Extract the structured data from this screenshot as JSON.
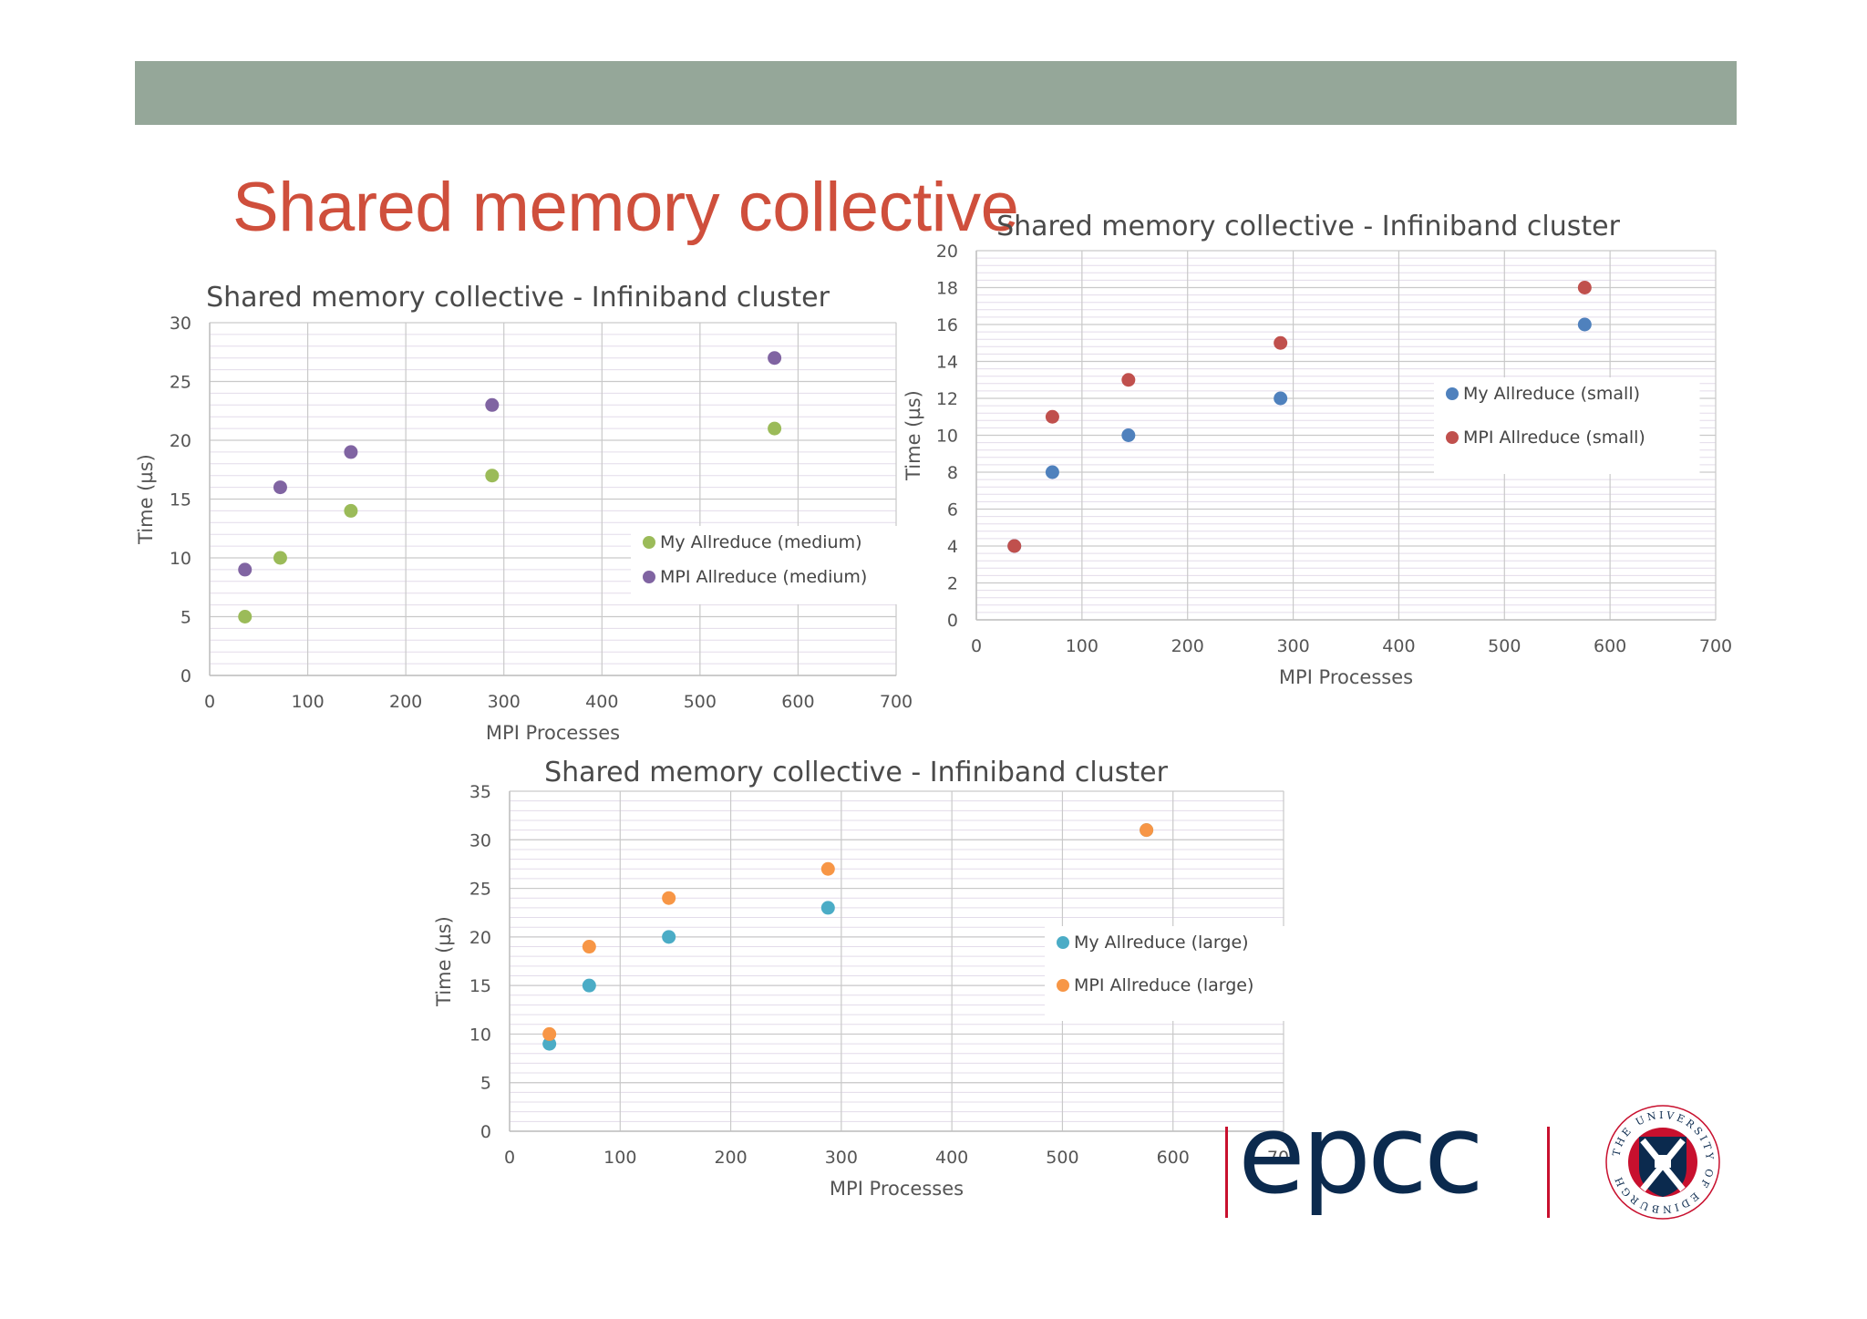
{
  "slide": {
    "title": "Shared memory collective",
    "banner_color": "#95a799",
    "title_color": "#cf4f3c"
  },
  "chart_data": [
    {
      "type": "scatter",
      "title": "Shared memory collective - Infiniband cluster",
      "xlabel": "MPI Processes",
      "ylabel": "Time (µs)",
      "xlim": [
        0,
        700
      ],
      "ylim": [
        0,
        30
      ],
      "xticks": [
        0,
        100,
        200,
        300,
        400,
        500,
        600,
        700
      ],
      "yticks": [
        0,
        5,
        10,
        15,
        20,
        25,
        30
      ],
      "grid": true,
      "legend_position": "right",
      "series": [
        {
          "name": "My Allreduce (medium)",
          "color": "#9bbb59",
          "x": [
            36,
            72,
            144,
            288,
            576
          ],
          "y": [
            5,
            10,
            14,
            17,
            21
          ]
        },
        {
          "name": "MPI Allreduce (medium)",
          "color": "#8064a2",
          "x": [
            36,
            72,
            144,
            288,
            576
          ],
          "y": [
            9,
            16,
            19,
            23,
            27
          ]
        }
      ]
    },
    {
      "type": "scatter",
      "title": "Shared memory collective - Infiniband cluster",
      "xlabel": "MPI Processes",
      "ylabel": "Time (µs)",
      "xlim": [
        0,
        700
      ],
      "ylim": [
        0,
        20
      ],
      "xticks": [
        0,
        100,
        200,
        300,
        400,
        500,
        600,
        700
      ],
      "yticks": [
        0,
        2,
        4,
        6,
        8,
        10,
        12,
        14,
        16,
        18,
        20
      ],
      "grid": true,
      "legend_position": "right",
      "series": [
        {
          "name": "My Allreduce (small)",
          "color": "#4f81bd",
          "x": [
            36,
            72,
            144,
            288,
            576
          ],
          "y": [
            4,
            8,
            10,
            12,
            16
          ]
        },
        {
          "name": "MPI Allreduce (small)",
          "color": "#c0504d",
          "x": [
            36,
            72,
            144,
            288,
            576
          ],
          "y": [
            4,
            11,
            13,
            15,
            18
          ]
        }
      ]
    },
    {
      "type": "scatter",
      "title": "Shared memory collective - Infiniband cluster",
      "xlabel": "MPI Processes",
      "ylabel": "Time (µs)",
      "xlim": [
        0,
        700
      ],
      "ylim": [
        0,
        35
      ],
      "xticks": [
        0,
        100,
        200,
        300,
        400,
        500,
        600,
        700
      ],
      "yticks": [
        0,
        5,
        10,
        15,
        20,
        25,
        30,
        35
      ],
      "grid": true,
      "legend_position": "right",
      "series": [
        {
          "name": "My Allreduce (large)",
          "color": "#4bacc6",
          "x": [
            36,
            72,
            144,
            288,
            576
          ],
          "y": [
            9,
            15,
            20,
            23,
            31
          ]
        },
        {
          "name": "MPI Allreduce (large)",
          "color": "#f79646",
          "x": [
            36,
            72,
            144,
            288,
            576
          ],
          "y": [
            10,
            19,
            24,
            27,
            31
          ]
        }
      ]
    }
  ],
  "logos": {
    "epcc": {
      "text": "epcc",
      "color": "#0b2a4e",
      "bar_color": "#c8102e"
    },
    "university": {
      "text": "THE UNIVERSITY OF EDINBURGH",
      "ring_color": "#c8102e",
      "shield_color": "#0b2a4e"
    }
  }
}
